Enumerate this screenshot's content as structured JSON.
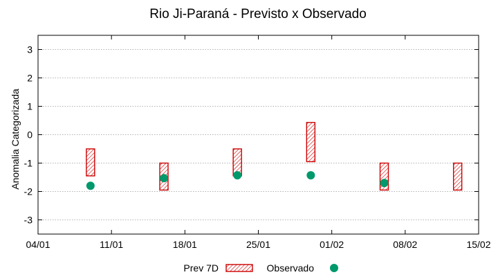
{
  "chart_data": {
    "type": "scatter",
    "title": "Rio Ji-Paraná - Previsto x Observado",
    "xlabel": "",
    "ylabel": "Anomalia Categorizada",
    "x_tick_labels": [
      "04/01",
      "11/01",
      "18/01",
      "25/01",
      "01/02",
      "08/02",
      "15/02"
    ],
    "y_tick_labels": [
      "-3",
      "-2",
      "-1",
      "0",
      "1",
      "2",
      "3"
    ],
    "ylim": [
      -3.5,
      3.5
    ],
    "xlim_days": [
      0,
      42
    ],
    "grid": "horizontal dotted",
    "legend_position": "bottom-center",
    "series": [
      {
        "name": "Prev 7D",
        "kind": "range-box",
        "color": "#cc0000",
        "points": [
          {
            "x": "09/01",
            "low": -1.45,
            "high": -0.5
          },
          {
            "x": "16/01",
            "low": -1.95,
            "high": -1.0
          },
          {
            "x": "23/01",
            "low": -1.45,
            "high": -0.5
          },
          {
            "x": "30/01",
            "low": -0.95,
            "high": 0.43
          },
          {
            "x": "06/02",
            "low": -1.95,
            "high": -1.0
          },
          {
            "x": "13/02",
            "low": -1.95,
            "high": -1.0
          }
        ]
      },
      {
        "name": "Observado",
        "kind": "point",
        "color": "#00996b",
        "points": [
          {
            "x": "09/01",
            "y": -1.8
          },
          {
            "x": "16/01",
            "y": -1.53
          },
          {
            "x": "23/01",
            "y": -1.43
          },
          {
            "x": "30/01",
            "y": -1.43
          },
          {
            "x": "06/02",
            "y": -1.7
          }
        ]
      }
    ]
  }
}
